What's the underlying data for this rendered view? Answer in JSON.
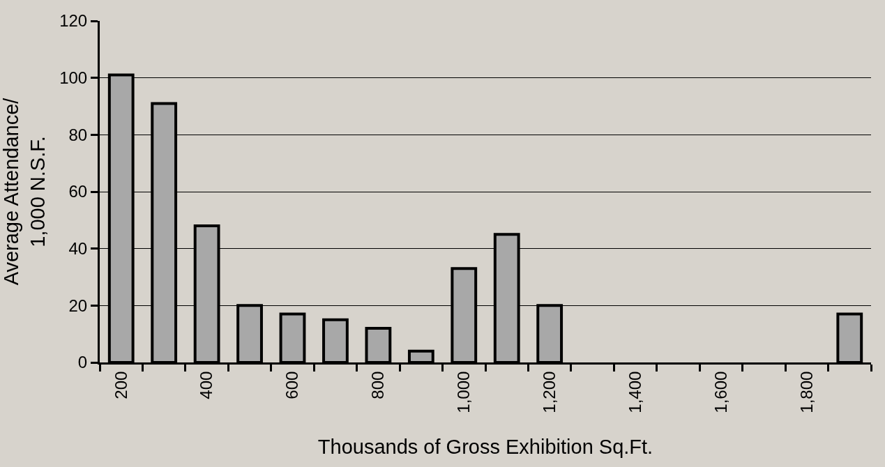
{
  "chart_data": {
    "type": "bar",
    "xlabel": "Thousands of Gross Exhibition Sq.Ft.",
    "ylabel": "Average Attendance/\n1,000 N.S.F.",
    "categories": [
      "200",
      null,
      "400",
      null,
      "600",
      null,
      "800",
      null,
      "1,000",
      null,
      "1,200",
      null,
      "1,400",
      null,
      "1,600",
      null,
      "1,800",
      null
    ],
    "values": [
      101,
      91,
      48,
      20,
      17,
      15,
      12,
      4,
      33,
      45,
      20,
      0,
      0,
      0,
      0,
      0,
      0,
      17
    ],
    "color": "#a8a8a8",
    "ylim": [
      0,
      120
    ],
    "yticks": [
      0,
      20,
      40,
      60,
      80,
      100,
      120
    ],
    "grid": "y"
  }
}
